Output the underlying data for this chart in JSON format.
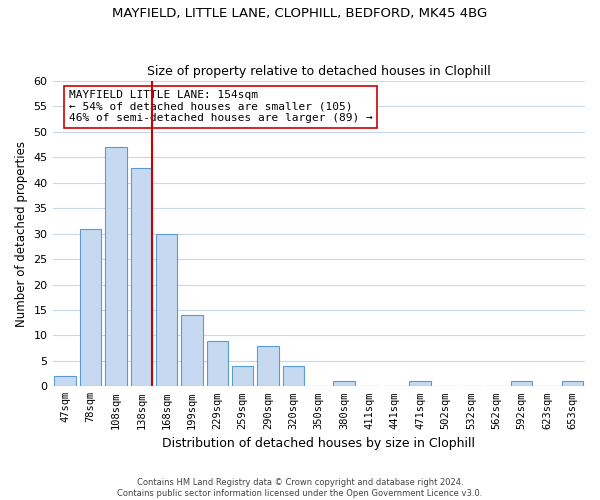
{
  "title": "MAYFIELD, LITTLE LANE, CLOPHILL, BEDFORD, MK45 4BG",
  "subtitle": "Size of property relative to detached houses in Clophill",
  "xlabel": "Distribution of detached houses by size in Clophill",
  "ylabel": "Number of detached properties",
  "footer_line1": "Contains HM Land Registry data © Crown copyright and database right 2024.",
  "footer_line2": "Contains public sector information licensed under the Open Government Licence v3.0.",
  "bar_labels": [
    "47sqm",
    "78sqm",
    "108sqm",
    "138sqm",
    "168sqm",
    "199sqm",
    "229sqm",
    "259sqm",
    "290sqm",
    "320sqm",
    "350sqm",
    "380sqm",
    "411sqm",
    "441sqm",
    "471sqm",
    "502sqm",
    "532sqm",
    "562sqm",
    "592sqm",
    "623sqm",
    "653sqm"
  ],
  "bar_values": [
    2,
    31,
    47,
    43,
    30,
    14,
    9,
    4,
    8,
    4,
    0,
    1,
    0,
    0,
    1,
    0,
    0,
    0,
    1,
    0,
    1
  ],
  "bar_color": "#c6d9f0",
  "bar_edge_color": "#5b9bd5",
  "grid_color": "#c8d8ea",
  "property_line_color": "#cc0000",
  "annotation_title": "MAYFIELD LITTLE LANE: 154sqm",
  "annotation_line1": "← 54% of detached houses are smaller (105)",
  "annotation_line2": "46% of semi-detached houses are larger (89) →",
  "annotation_box_color": "#ffffff",
  "annotation_box_edge": "#cc0000",
  "ylim": [
    0,
    60
  ],
  "yticks": [
    0,
    5,
    10,
    15,
    20,
    25,
    30,
    35,
    40,
    45,
    50,
    55,
    60
  ]
}
